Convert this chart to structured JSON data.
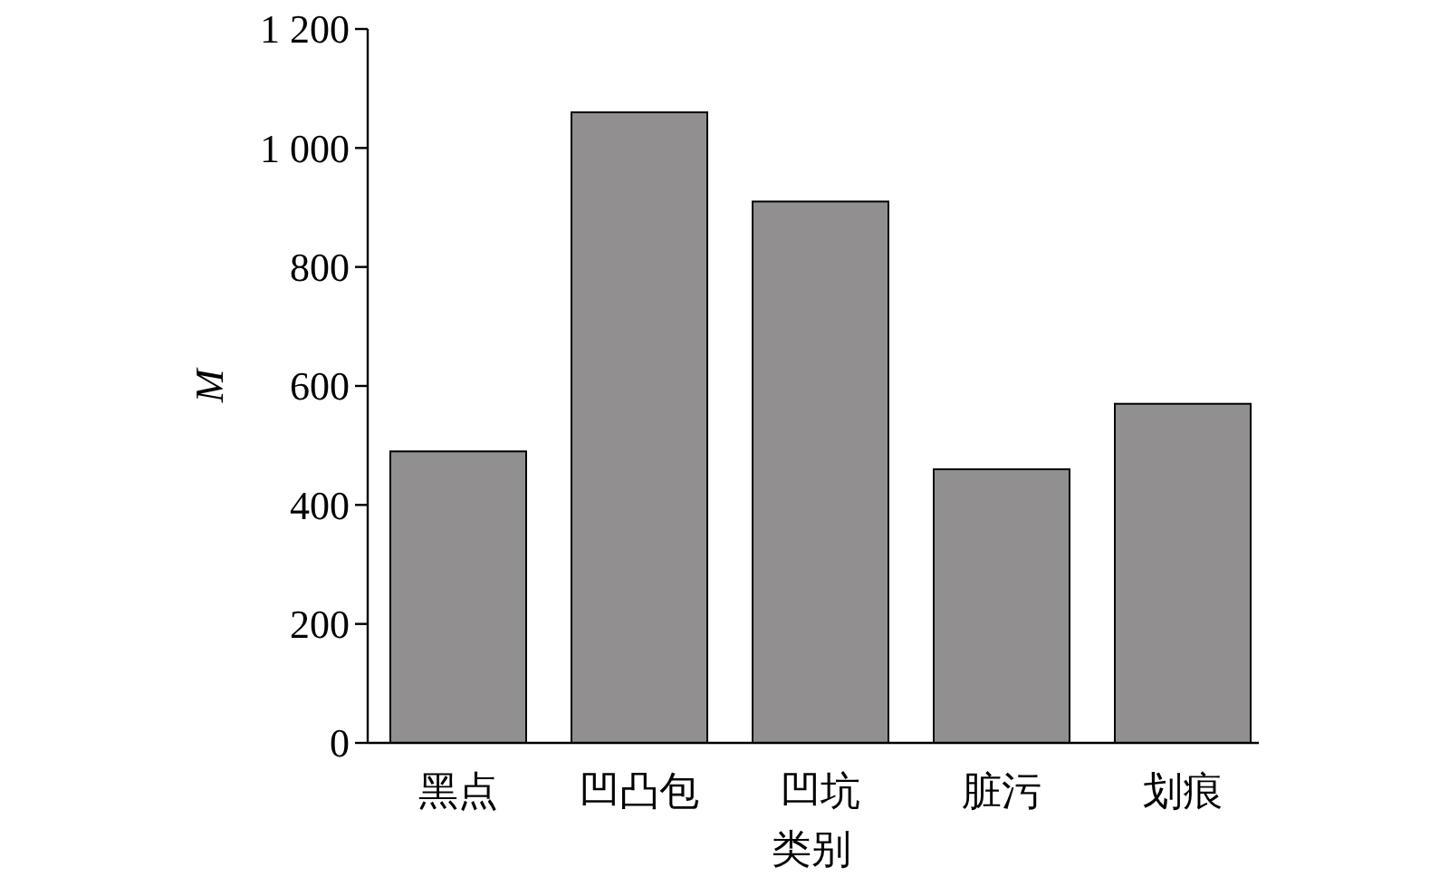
{
  "chart_data": {
    "type": "bar",
    "xlabel": "类别",
    "ylabel": "M",
    "categories": [
      "黑点",
      "凹凸包",
      "凹坑",
      "脏污",
      "划痕"
    ],
    "values": [
      490,
      1060,
      910,
      460,
      570
    ],
    "color": "#918f90",
    "ylim": [
      0,
      1200
    ],
    "yticks": [
      0,
      200,
      400,
      600,
      800,
      {
        "value": 1000,
        "label": "1 000"
      },
      {
        "value": 1200,
        "label": "1 200"
      }
    ],
    "grid": false
  }
}
